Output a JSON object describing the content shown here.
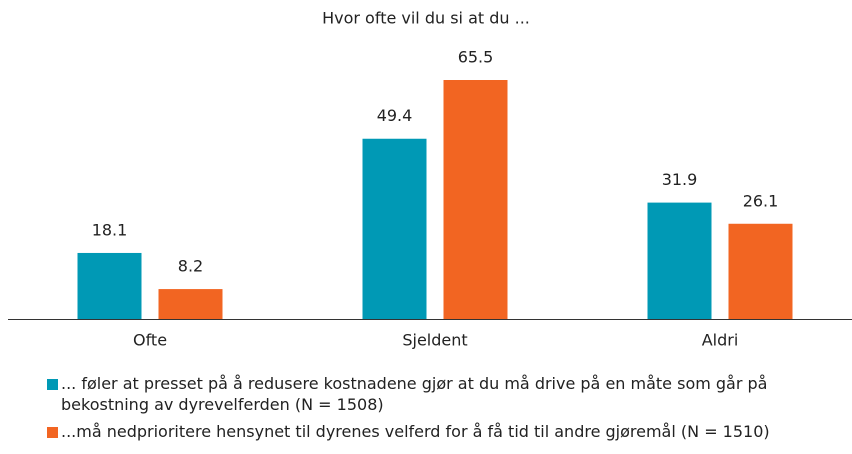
{
  "chart_data": {
    "type": "bar",
    "title": "Hvor ofte vil du si at du ...",
    "categories": [
      "Ofte",
      "Sjeldent",
      "Aldri"
    ],
    "series": [
      {
        "name": "... føler at presset på å redusere kostnadene gjør at du må drive på en måte som går på bekostning av dyrevelferden (N = 1508)",
        "color": "#0099b5",
        "values": [
          18.1,
          49.4,
          31.9
        ]
      },
      {
        "name": "...må nedprioritere hensynet til dyrenes velferd for å få tid til andre gjøremål (N = 1510)",
        "color": "#f26522",
        "values": [
          8.2,
          65.5,
          26.1
        ]
      }
    ]
  }
}
